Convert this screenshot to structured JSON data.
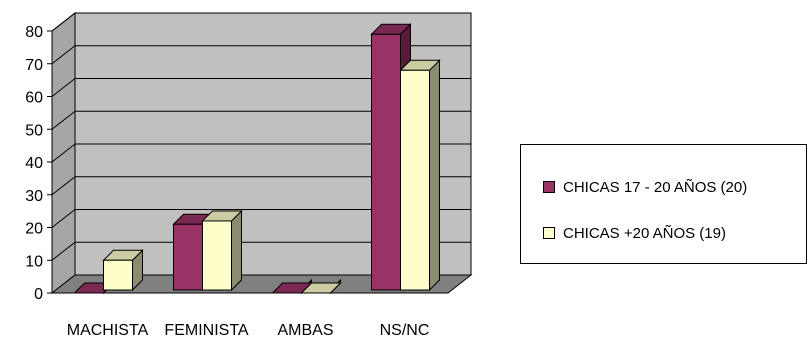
{
  "chart_data": {
    "type": "bar",
    "categories": [
      "MACHISTA",
      "FEMINISTA",
      "AMBAS",
      "NS/NC"
    ],
    "series": [
      {
        "name": "CHICAS 17 - 20 AÑOS (20)",
        "values": [
          0,
          21,
          0,
          79
        ],
        "color": "#993366"
      },
      {
        "name": "CHICAS +20 AÑOS (19)",
        "values": [
          10,
          22,
          0,
          68
        ],
        "color": "#ffffcc"
      }
    ],
    "ylim": [
      0,
      80
    ],
    "yticks": [
      "0",
      "10",
      "20",
      "30",
      "40",
      "50",
      "60",
      "70",
      "80"
    ],
    "grid": true,
    "legend_position": "right",
    "wall_color": "#c0c0c0"
  }
}
